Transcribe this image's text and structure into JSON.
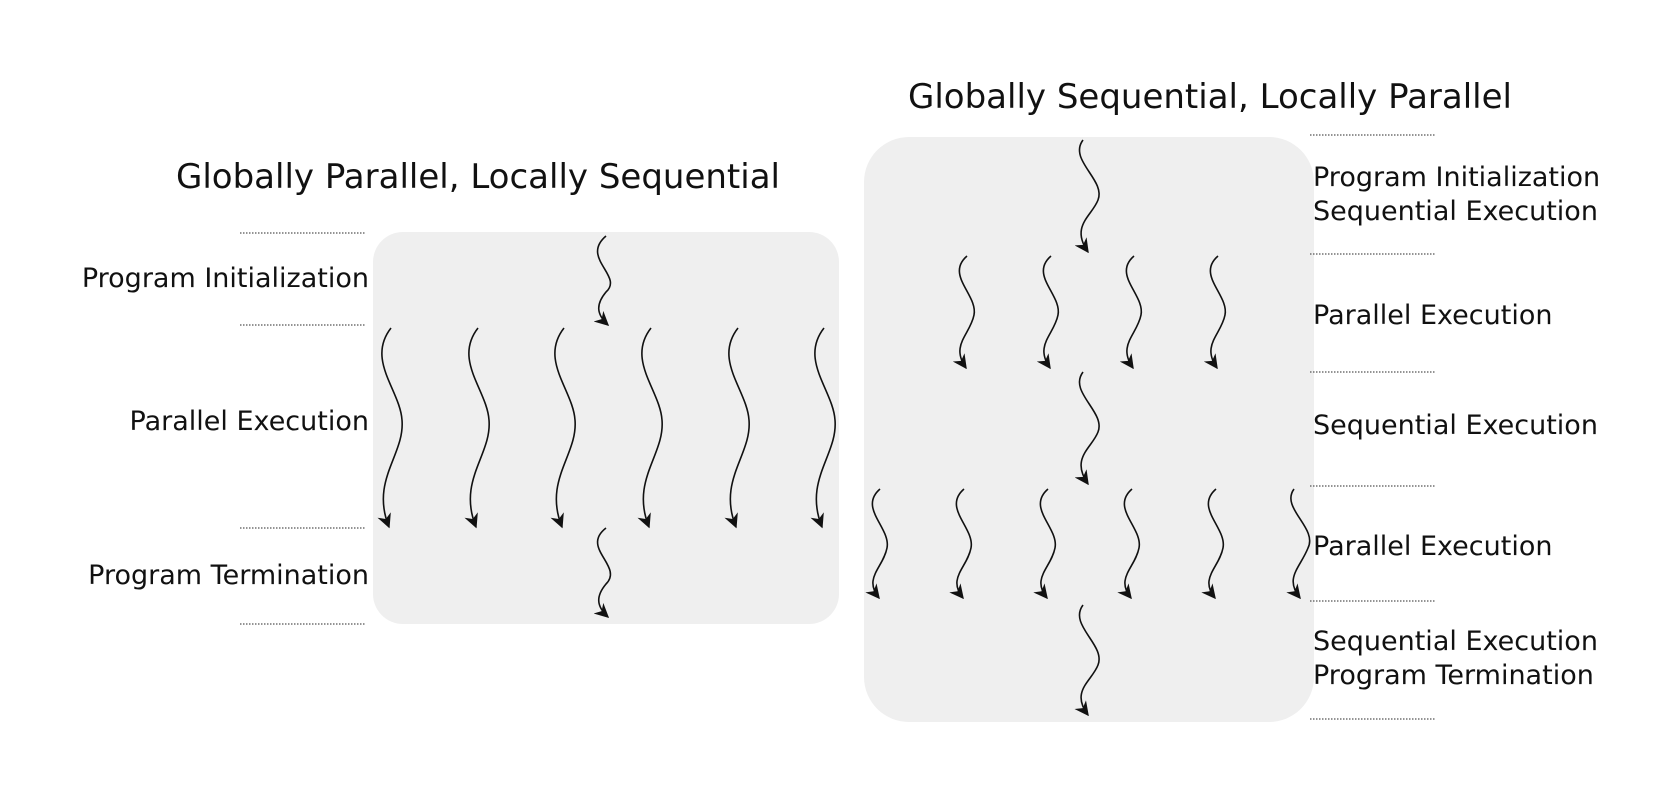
{
  "left": {
    "title": "Globally Parallel, Locally Sequential",
    "phases": [
      "Program Initialization",
      "Parallel Execution",
      "Program Termination"
    ]
  },
  "right": {
    "title": "Globally Sequential, Locally Parallel",
    "phases": [
      [
        "Program Initialization",
        "Sequential Execution"
      ],
      [
        "Parallel Execution"
      ],
      [
        "Sequential Execution"
      ],
      [
        "Parallel Execution"
      ],
      [
        "Sequential Execution",
        "Program Termination"
      ]
    ]
  }
}
